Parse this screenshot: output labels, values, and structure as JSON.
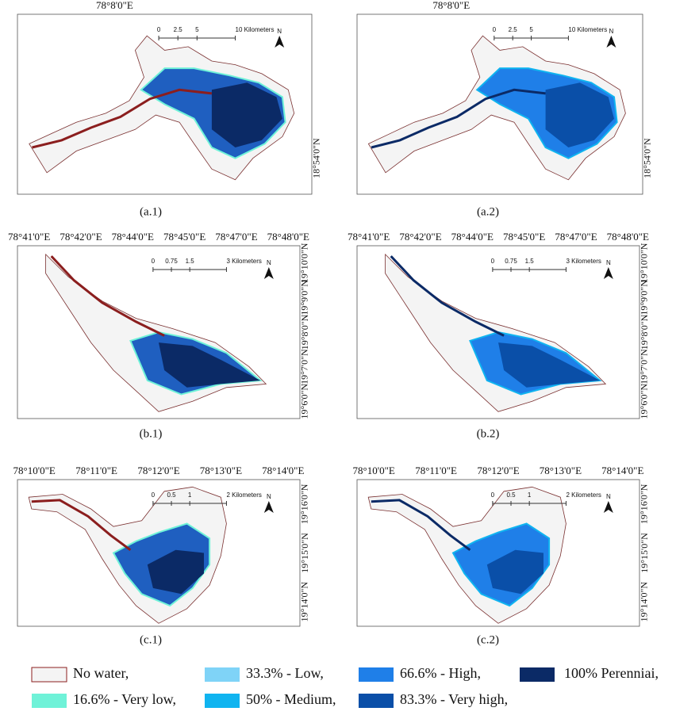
{
  "panels": [
    {
      "caption": "(a.1)",
      "variant": "present",
      "shape": "a",
      "top_labels": [
        "78°8'0\"E"
      ],
      "right_labels": [
        "18°54'0\"N"
      ],
      "scale_labels": [
        "0",
        "2.5",
        "5",
        "10 Kilometers"
      ],
      "north": "N"
    },
    {
      "caption": "(a.2)",
      "variant": "future",
      "shape": "a",
      "top_labels": [
        "78°8'0\"E"
      ],
      "right_labels": [
        "18°54'0\"N"
      ],
      "scale_labels": [
        "0",
        "2.5",
        "5",
        "10 Kilometers"
      ],
      "north": "N"
    },
    {
      "caption": "(b.1)",
      "variant": "present",
      "shape": "b",
      "top_labels": [
        "78°41'0\"E",
        "78°42'0\"E",
        "78°44'0\"E",
        "78°45'0\"E",
        "78°47'0\"E",
        "78°48'0\"E"
      ],
      "right_labels": [
        "19°10'0\"N",
        "19°9'0\"N",
        "19°8'0\"N",
        "19°7'0\"N",
        "19°6'0\"N"
      ],
      "scale_labels": [
        "0",
        "0.75",
        "1.5",
        "3 Kilometers"
      ],
      "north": "N"
    },
    {
      "caption": "(b.2)",
      "variant": "future",
      "shape": "b",
      "top_labels": [
        "78°41'0\"E",
        "78°42'0\"E",
        "78°44'0\"E",
        "78°45'0\"E",
        "78°47'0\"E",
        "78°48'0\"E"
      ],
      "right_labels": [
        "19°10'0\"N",
        "19°9'0\"N",
        "19°8'0\"N",
        "19°7'0\"N",
        "19°6'0\"N"
      ],
      "scale_labels": [
        "0",
        "0.75",
        "1.5",
        "3 Kilometers"
      ],
      "north": "N"
    },
    {
      "caption": "(c.1)",
      "variant": "present",
      "shape": "c",
      "top_labels": [
        "78°10'0\"E",
        "78°11'0\"E",
        "78°12'0\"E",
        "78°13'0\"E",
        "78°14'0\"E"
      ],
      "right_labels": [
        "19°16'0\"N",
        "19°15'0\"N",
        "19°14'0\"N"
      ],
      "scale_labels": [
        "0",
        "0.5",
        "1",
        "2 Kilometers"
      ],
      "north": "N"
    },
    {
      "caption": "(c.2)",
      "variant": "future",
      "shape": "c",
      "top_labels": [
        "78°10'0\"E",
        "78°11'0\"E",
        "78°12'0\"E",
        "78°13'0\"E",
        "78°14'0\"E"
      ],
      "right_labels": [
        "19°16'0\"N",
        "19°15'0\"N",
        "19°14'0\"N"
      ],
      "scale_labels": [
        "0",
        "0.5",
        "1",
        "2 Kilometers"
      ],
      "north": "N"
    }
  ],
  "legend": [
    {
      "label": "No water,",
      "color": "#f4f4f4"
    },
    {
      "label": "33.3% - Low,",
      "color": "#7fd3f7"
    },
    {
      "label": "66.6% - High,",
      "color": "#1f7fe8"
    },
    {
      "label": "100% Perenniai,",
      "color": "#0b2a66"
    },
    {
      "label": "16.6% - Very low,",
      "color": "#6ff2d8"
    },
    {
      "label": "50% - Medium,",
      "color": "#10b4f0"
    },
    {
      "label": "83.3% - Very high,",
      "color": "#0a4fa8"
    }
  ]
}
